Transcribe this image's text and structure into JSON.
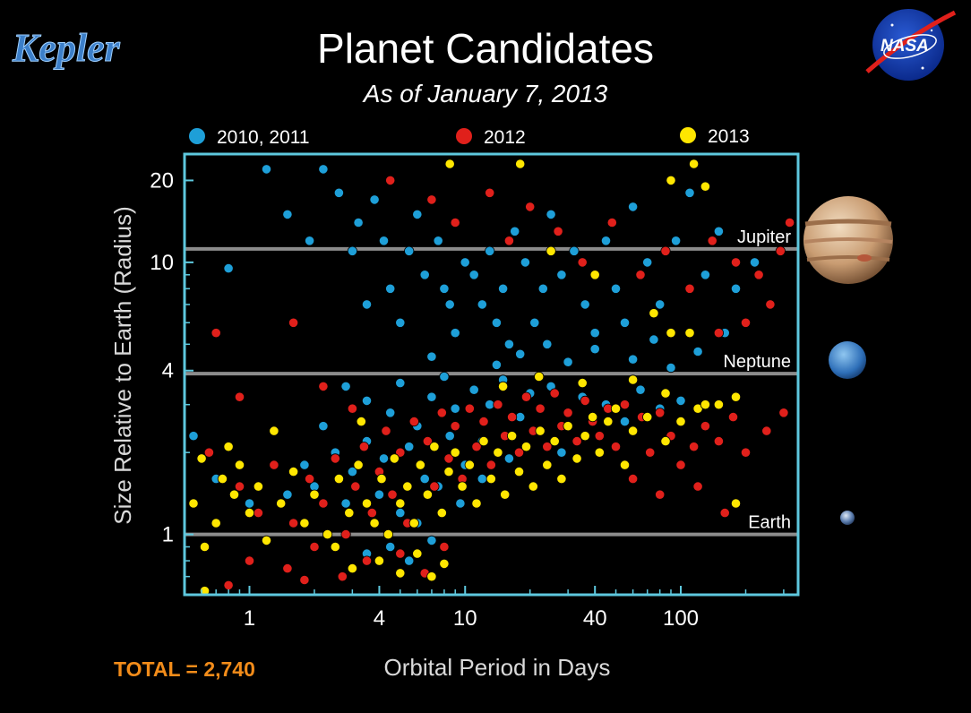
{
  "logos": {
    "kepler": "Kepler",
    "nasa": "NASA"
  },
  "colors": {
    "frame": "#5ec8de",
    "reference_line": "#8c8c8c",
    "total": "#f28c1a",
    "kepler_logo": "#3c7fc9"
  },
  "footer": {
    "total": "TOTAL = 2,740"
  },
  "planets": [
    {
      "name": "jupiter-image",
      "icon": "jupiter"
    },
    {
      "name": "neptune-image",
      "icon": "neptune"
    },
    {
      "name": "earth-image",
      "icon": "earth"
    }
  ],
  "chart_data": {
    "type": "scatter",
    "title": "Planet Candidates",
    "subtitle": "As of January 7, 2013",
    "xlabel": "Orbital Period in Days",
    "ylabel": "Size Relative to Earth (Radius)",
    "xscale": "log",
    "yscale": "log",
    "xlim": [
      0.5,
      350
    ],
    "ylim": [
      0.6,
      25
    ],
    "xticks": [
      1,
      4,
      10,
      40,
      100
    ],
    "xtick_labels": [
      "1",
      "4",
      "10",
      "40",
      "100"
    ],
    "yticks": [
      1,
      4,
      10,
      20
    ],
    "ytick_labels": [
      "1",
      "4",
      "10",
      "20"
    ],
    "legend_position": "top",
    "reference_lines": [
      {
        "label": "Jupiter",
        "y": 11.2
      },
      {
        "label": "Neptune",
        "y": 3.9
      },
      {
        "label": "Earth",
        "y": 1
      }
    ],
    "series": [
      {
        "name": "2010, 2011",
        "color": "#1e9fd8",
        "points": [
          [
            0.55,
            2.3
          ],
          [
            0.8,
            9.5
          ],
          [
            1.2,
            22
          ],
          [
            1.5,
            15
          ],
          [
            1.9,
            12
          ],
          [
            2.2,
            22
          ],
          [
            2.6,
            18
          ],
          [
            3.0,
            11
          ],
          [
            3.2,
            14
          ],
          [
            3.5,
            7
          ],
          [
            3.8,
            17
          ],
          [
            4.2,
            12
          ],
          [
            4.5,
            8
          ],
          [
            5.0,
            6
          ],
          [
            5.5,
            11
          ],
          [
            6.0,
            15
          ],
          [
            6.5,
            9
          ],
          [
            7.0,
            4.5
          ],
          [
            7.5,
            12
          ],
          [
            8.0,
            8
          ],
          [
            8.5,
            7
          ],
          [
            9.0,
            5.5
          ],
          [
            10,
            10
          ],
          [
            11,
            9
          ],
          [
            12,
            7
          ],
          [
            13,
            11
          ],
          [
            14,
            6
          ],
          [
            15,
            8
          ],
          [
            16,
            5
          ],
          [
            17,
            13
          ],
          [
            19,
            10
          ],
          [
            21,
            6
          ],
          [
            23,
            8
          ],
          [
            25,
            15
          ],
          [
            28,
            9
          ],
          [
            32,
            11
          ],
          [
            36,
            7
          ],
          [
            40,
            5.5
          ],
          [
            45,
            12
          ],
          [
            50,
            8
          ],
          [
            55,
            6
          ],
          [
            60,
            16
          ],
          [
            70,
            10
          ],
          [
            80,
            7
          ],
          [
            95,
            12
          ],
          [
            110,
            18
          ],
          [
            130,
            9
          ],
          [
            150,
            13
          ],
          [
            180,
            8
          ],
          [
            220,
            10
          ],
          [
            3.5,
            3.1
          ],
          [
            4.5,
            2.8
          ],
          [
            5.0,
            3.6
          ],
          [
            6.0,
            2.5
          ],
          [
            7.0,
            3.2
          ],
          [
            8.0,
            3.8
          ],
          [
            9.0,
            2.9
          ],
          [
            11,
            3.4
          ],
          [
            13,
            3.0
          ],
          [
            15,
            3.7
          ],
          [
            18,
            2.7
          ],
          [
            20,
            3.3
          ],
          [
            25,
            3.5
          ],
          [
            30,
            2.8
          ],
          [
            35,
            3.2
          ],
          [
            45,
            3.0
          ],
          [
            55,
            2.6
          ],
          [
            65,
            3.4
          ],
          [
            80,
            2.9
          ],
          [
            100,
            3.1
          ],
          [
            2.5,
            2.0
          ],
          [
            3.0,
            1.7
          ],
          [
            3.5,
            2.2
          ],
          [
            4.2,
            1.9
          ],
          [
            5.5,
            2.1
          ],
          [
            6.5,
            1.6
          ],
          [
            8.5,
            2.3
          ],
          [
            10,
            1.8
          ],
          [
            12,
            2.2
          ],
          [
            16,
            1.9
          ],
          [
            22,
            2.4
          ],
          [
            28,
            2.0
          ],
          [
            2.0,
            1.5
          ],
          [
            2.8,
            1.3
          ],
          [
            4.0,
            1.4
          ],
          [
            5.0,
            1.2
          ],
          [
            6.0,
            1.1
          ],
          [
            7.5,
            1.5
          ],
          [
            9.5,
            1.3
          ],
          [
            12,
            1.6
          ],
          [
            4.5,
            0.9
          ],
          [
            5.5,
            0.8
          ],
          [
            7.0,
            0.95
          ],
          [
            3.5,
            0.85
          ],
          [
            1.5,
            1.4
          ],
          [
            1.8,
            1.8
          ],
          [
            2.2,
            2.5
          ],
          [
            2.8,
            3.5
          ],
          [
            1.0,
            1.3
          ],
          [
            0.7,
            1.6
          ],
          [
            14,
            4.2
          ],
          [
            18,
            4.6
          ],
          [
            24,
            5.0
          ],
          [
            30,
            4.3
          ],
          [
            40,
            4.8
          ],
          [
            60,
            4.4
          ],
          [
            75,
            5.2
          ],
          [
            90,
            4.1
          ],
          [
            120,
            4.7
          ],
          [
            160,
            5.5
          ]
        ]
      },
      {
        "name": "2012",
        "color": "#e0201b",
        "points": [
          [
            0.65,
            2.0
          ],
          [
            0.9,
            1.5
          ],
          [
            1.1,
            1.2
          ],
          [
            1.3,
            1.8
          ],
          [
            1.6,
            1.1
          ],
          [
            1.9,
            1.6
          ],
          [
            2.2,
            1.3
          ],
          [
            2.5,
            1.9
          ],
          [
            2.8,
            1.0
          ],
          [
            3.1,
            1.5
          ],
          [
            3.4,
            2.1
          ],
          [
            3.7,
            1.2
          ],
          [
            4.0,
            1.7
          ],
          [
            4.3,
            2.4
          ],
          [
            4.6,
            1.4
          ],
          [
            5.0,
            2.0
          ],
          [
            5.4,
            1.1
          ],
          [
            5.8,
            2.6
          ],
          [
            6.2,
            1.8
          ],
          [
            6.7,
            2.2
          ],
          [
            7.2,
            1.5
          ],
          [
            7.8,
            2.8
          ],
          [
            8.4,
            1.9
          ],
          [
            9.0,
            2.5
          ],
          [
            9.7,
            1.6
          ],
          [
            10.5,
            2.9
          ],
          [
            11.3,
            2.1
          ],
          [
            12.2,
            2.6
          ],
          [
            13.2,
            1.8
          ],
          [
            14.2,
            3.0
          ],
          [
            15.3,
            2.3
          ],
          [
            16.5,
            2.7
          ],
          [
            17.8,
            2.0
          ],
          [
            19.2,
            3.2
          ],
          [
            20.7,
            2.4
          ],
          [
            22.3,
            2.9
          ],
          [
            24.0,
            2.1
          ],
          [
            26,
            3.3
          ],
          [
            28,
            2.5
          ],
          [
            30,
            2.8
          ],
          [
            33,
            2.2
          ],
          [
            36,
            3.1
          ],
          [
            39,
            2.6
          ],
          [
            42,
            2.3
          ],
          [
            46,
            2.9
          ],
          [
            50,
            2.1
          ],
          [
            55,
            3.0
          ],
          [
            60,
            2.4
          ],
          [
            66,
            2.7
          ],
          [
            72,
            2.0
          ],
          [
            80,
            2.8
          ],
          [
            90,
            2.3
          ],
          [
            100,
            2.6
          ],
          [
            115,
            2.1
          ],
          [
            130,
            2.5
          ],
          [
            150,
            2.2
          ],
          [
            175,
            2.7
          ],
          [
            200,
            2.0
          ],
          [
            250,
            2.4
          ],
          [
            300,
            2.8
          ],
          [
            1.0,
            0.8
          ],
          [
            1.5,
            0.75
          ],
          [
            2.0,
            0.9
          ],
          [
            2.7,
            0.7
          ],
          [
            3.5,
            0.8
          ],
          [
            5.0,
            0.85
          ],
          [
            6.5,
            0.72
          ],
          [
            8.0,
            0.9
          ],
          [
            0.8,
            0.65
          ],
          [
            1.8,
            0.68
          ],
          [
            4.5,
            20
          ],
          [
            7.0,
            17
          ],
          [
            9.0,
            14
          ],
          [
            13,
            18
          ],
          [
            16,
            12
          ],
          [
            20,
            16
          ],
          [
            27,
            13
          ],
          [
            35,
            10
          ],
          [
            48,
            14
          ],
          [
            65,
            9
          ],
          [
            85,
            11
          ],
          [
            110,
            8
          ],
          [
            140,
            12
          ],
          [
            180,
            10
          ],
          [
            230,
            9
          ],
          [
            290,
            11
          ],
          [
            320,
            14
          ],
          [
            260,
            7
          ],
          [
            200,
            6
          ],
          [
            150,
            5.5
          ],
          [
            0.7,
            5.5
          ],
          [
            1.6,
            6
          ],
          [
            0.9,
            3.2
          ],
          [
            2.2,
            3.5
          ],
          [
            3.0,
            2.9
          ],
          [
            120,
            1.5
          ],
          [
            160,
            1.2
          ],
          [
            100,
            1.8
          ],
          [
            80,
            1.4
          ],
          [
            60,
            1.6
          ]
        ]
      },
      {
        "name": "2013",
        "color": "#ffe600",
        "points": [
          [
            0.55,
            1.3
          ],
          [
            0.6,
            1.9
          ],
          [
            0.62,
            0.62
          ],
          [
            0.7,
            1.1
          ],
          [
            0.75,
            1.6
          ],
          [
            0.8,
            2.1
          ],
          [
            0.85,
            1.4
          ],
          [
            0.9,
            1.8
          ],
          [
            1.0,
            1.2
          ],
          [
            1.1,
            1.5
          ],
          [
            1.2,
            0.95
          ],
          [
            1.4,
            1.3
          ],
          [
            1.6,
            1.7
          ],
          [
            1.8,
            1.1
          ],
          [
            2.0,
            1.4
          ],
          [
            2.3,
            1.0
          ],
          [
            2.6,
            1.6
          ],
          [
            2.9,
            1.2
          ],
          [
            3.2,
            1.8
          ],
          [
            3.5,
            1.3
          ],
          [
            3.8,
            1.1
          ],
          [
            4.1,
            1.6
          ],
          [
            4.4,
            1.0
          ],
          [
            4.7,
            1.9
          ],
          [
            5.0,
            1.3
          ],
          [
            5.4,
            1.5
          ],
          [
            5.8,
            1.1
          ],
          [
            6.2,
            1.8
          ],
          [
            6.7,
            1.4
          ],
          [
            7.2,
            2.1
          ],
          [
            7.8,
            1.2
          ],
          [
            8.4,
            1.7
          ],
          [
            9.0,
            2.0
          ],
          [
            9.7,
            1.5
          ],
          [
            10.5,
            1.8
          ],
          [
            11.3,
            1.3
          ],
          [
            12.2,
            2.2
          ],
          [
            13.2,
            1.6
          ],
          [
            14.2,
            2.0
          ],
          [
            15.3,
            1.4
          ],
          [
            16.5,
            2.3
          ],
          [
            17.8,
            1.7
          ],
          [
            19.2,
            2.1
          ],
          [
            20.7,
            1.5
          ],
          [
            22.3,
            2.4
          ],
          [
            24,
            1.8
          ],
          [
            26,
            2.2
          ],
          [
            28,
            1.6
          ],
          [
            30,
            2.5
          ],
          [
            33,
            1.9
          ],
          [
            36,
            2.3
          ],
          [
            39,
            2.7
          ],
          [
            42,
            2.0
          ],
          [
            46,
            2.6
          ],
          [
            50,
            2.9
          ],
          [
            55,
            1.8
          ],
          [
            60,
            2.4
          ],
          [
            70,
            2.7
          ],
          [
            85,
            2.2
          ],
          [
            100,
            2.6
          ],
          [
            120,
            2.9
          ],
          [
            150,
            3.0
          ],
          [
            180,
            1.3
          ],
          [
            3.0,
            0.75
          ],
          [
            4.0,
            0.8
          ],
          [
            5.0,
            0.72
          ],
          [
            6.0,
            0.85
          ],
          [
            7.0,
            0.7
          ],
          [
            8.0,
            0.78
          ],
          [
            0.62,
            0.9
          ],
          [
            8.5,
            23
          ],
          [
            18,
            23
          ],
          [
            115,
            23
          ],
          [
            130,
            19
          ],
          [
            90,
            20
          ],
          [
            25,
            11
          ],
          [
            40,
            9
          ],
          [
            75,
            6.5
          ],
          [
            90,
            5.5
          ],
          [
            110,
            5.5
          ],
          [
            15,
            3.5
          ],
          [
            22,
            3.8
          ],
          [
            35,
            3.6
          ],
          [
            60,
            3.7
          ],
          [
            85,
            3.3
          ],
          [
            130,
            3.0
          ],
          [
            180,
            3.2
          ],
          [
            2.5,
            0.9
          ],
          [
            3.3,
            2.6
          ],
          [
            1.3,
            2.4
          ]
        ]
      }
    ]
  }
}
